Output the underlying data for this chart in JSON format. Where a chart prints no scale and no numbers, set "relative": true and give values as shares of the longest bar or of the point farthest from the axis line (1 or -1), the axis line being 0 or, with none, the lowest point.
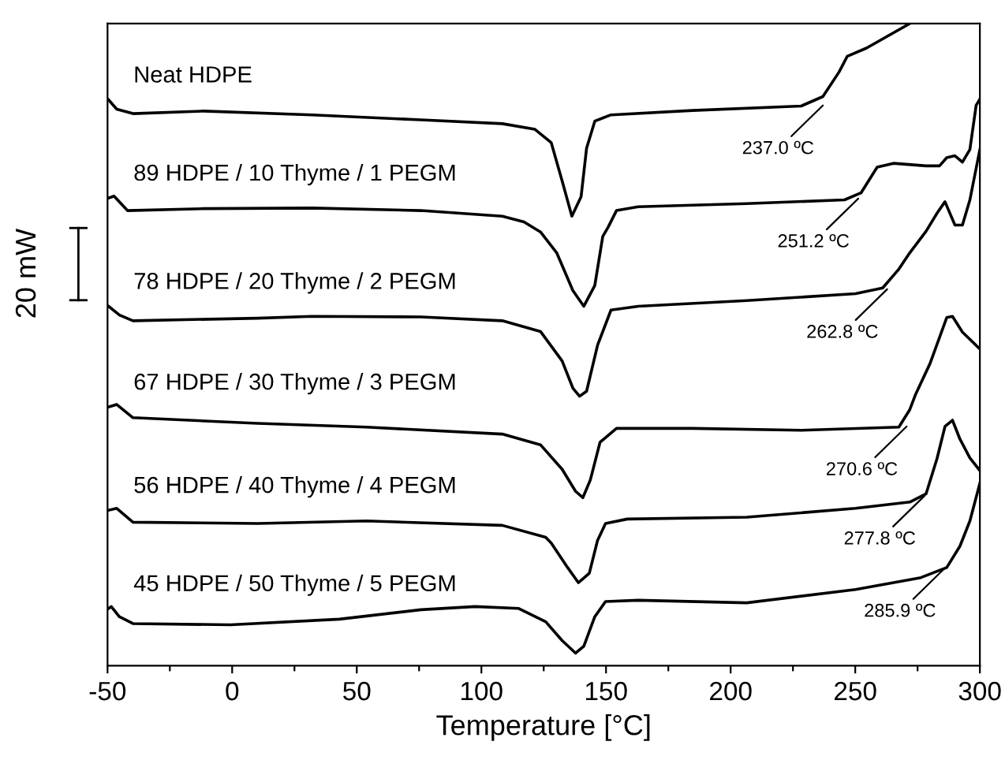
{
  "chart_data": {
    "type": "line",
    "relative": true,
    "xlabel": "Temperature [°C]",
    "xlim": [
      -50,
      300
    ],
    "xticks": [
      -50,
      {
        "value": -25,
        "label": null
      },
      0,
      {
        "value": 25,
        "label": null
      },
      50,
      {
        "value": 75,
        "label": null
      },
      100,
      {
        "value": 125,
        "label": null
      },
      150,
      {
        "value": 175,
        "label": null
      },
      200,
      {
        "value": 225,
        "label": null
      },
      250,
      {
        "value": 275,
        "label": null
      },
      300
    ],
    "tick_labels": "x",
    "grid": false,
    "legend": false,
    "marker": "none",
    "line_style": "solid",
    "series": [
      {
        "name": "Neat HDPE",
        "color": "#000000",
        "x": [
          -49.6,
          -46.3,
          -39.8,
          -11.5,
          32.1,
          75.7,
          108.4,
          121.5,
          128.0,
          132.4,
          136.3,
          140.0,
          142.2,
          145.5,
          152.0,
          184.7,
          228.3,
          237.0,
          243.5,
          246.8,
          254.5,
          271.9
        ],
        "values": [
          0.879,
          0.864,
          0.857,
          0.861,
          0.855,
          0.847,
          0.841,
          0.832,
          0.811,
          0.75,
          0.694,
          0.725,
          0.802,
          0.845,
          0.855,
          0.862,
          0.869,
          0.884,
          0.923,
          0.948,
          0.961,
          1.0
        ]
      },
      {
        "name": "89 HDPE / 10 Thyme / 1 PEGM",
        "color": "#000000",
        "x": [
          -49.6,
          -47.4,
          -42.0,
          -11.5,
          32.1,
          75.7,
          108.4,
          117.1,
          123.7,
          130.2,
          136.7,
          141.1,
          145.5,
          148.7,
          150.9,
          154.2,
          162.9,
          206.5,
          245.7,
          252.3,
          258.8,
          265.3,
          278.4,
          283.8,
          286.7,
          290,
          293,
          296,
          298.5,
          300
        ],
        "values": [
          0.723,
          0.726,
          0.703,
          0.706,
          0.707,
          0.703,
          0.694,
          0.685,
          0.669,
          0.636,
          0.576,
          0.551,
          0.584,
          0.662,
          0.677,
          0.703,
          0.709,
          0.714,
          0.72,
          0.731,
          0.772,
          0.778,
          0.774,
          0.774,
          0.787,
          0.79,
          0.78,
          0.8,
          0.87,
          0.88
        ]
      },
      {
        "name": "78 HDPE / 20 Thyme / 2 PEGM",
        "color": "#000000",
        "x": [
          -49.6,
          -45.2,
          -39.8,
          10.3,
          32.1,
          75.7,
          108.4,
          123.7,
          132.4,
          136.7,
          139.4,
          142.2,
          146.6,
          152.0,
          162.9,
          206.5,
          250.1,
          261.0,
          267.5,
          271.9,
          278.4,
          283,
          286,
          290,
          293,
          296,
          300
        ],
        "values": [
          0.551,
          0.537,
          0.528,
          0.532,
          0.535,
          0.534,
          0.528,
          0.511,
          0.464,
          0.421,
          0.408,
          0.416,
          0.489,
          0.545,
          0.551,
          0.56,
          0.571,
          0.58,
          0.61,
          0.636,
          0.67,
          0.7,
          0.717,
          0.68,
          0.68,
          0.72,
          0.8
        ]
      },
      {
        "name": "67 HDPE / 30 Thyme / 3 PEGM",
        "color": "#000000",
        "x": [
          -49.6,
          -46.3,
          -39.8,
          10.3,
          53.9,
          108.4,
          123.7,
          132.4,
          137.8,
          140.7,
          143.7,
          147.6,
          154.2,
          184.7,
          228.3,
          267.5,
          271.9,
          274.1,
          280,
          286.7,
          289,
          293,
          300
        ],
        "values": [
          0.391,
          0.395,
          0.374,
          0.365,
          0.359,
          0.348,
          0.331,
          0.292,
          0.257,
          0.247,
          0.275,
          0.335,
          0.357,
          0.357,
          0.354,
          0.359,
          0.387,
          0.41,
          0.46,
          0.533,
          0.535,
          0.51,
          0.483
        ]
      },
      {
        "name": "56 HDPE / 40 Thyme / 4 PEGM",
        "color": "#000000",
        "x": [
          -49.6,
          -46.3,
          -39.8,
          10.3,
          53.9,
          108.4,
          125.8,
          128.0,
          134.6,
          138.9,
          143.3,
          146.6,
          149.8,
          158.5,
          206.5,
          250.1,
          271.9,
          278.4,
          282.8,
          286,
          289,
          292,
          296,
          300
        ],
        "values": [
          0.227,
          0.23,
          0.208,
          0.206,
          0.21,
          0.203,
          0.184,
          0.175,
          0.136,
          0.112,
          0.127,
          0.179,
          0.206,
          0.213,
          0.216,
          0.23,
          0.24,
          0.253,
          0.309,
          0.36,
          0.37,
          0.34,
          0.31,
          0.29
        ]
      },
      {
        "name": "45 HDPE / 50 Thyme / 5 PEGM",
        "color": "#000000",
        "x": [
          -49.6,
          -48.5,
          -45.3,
          -39.8,
          -0.6,
          43.0,
          75.7,
          97.5,
          115.0,
          125.8,
          132.4,
          137.8,
          141.1,
          145.5,
          149.8,
          162.9,
          206.5,
          250.1,
          276.3,
          286.7,
          292,
          296,
          300
        ],
        "values": [
          0.071,
          0.074,
          0.058,
          0.047,
          0.045,
          0.054,
          0.069,
          0.074,
          0.071,
          0.05,
          0.02,
          0.0,
          0.011,
          0.058,
          0.082,
          0.084,
          0.08,
          0.101,
          0.12,
          0.136,
          0.17,
          0.21,
          0.27
        ]
      }
    ],
    "annotations": [
      {
        "text": "237.0 ºC",
        "x": 237.0,
        "y": 0.87
      },
      {
        "text": "251.2 ºC",
        "x": 251.2,
        "y": 0.722
      },
      {
        "text": "262.8 ºC",
        "x": 262.8,
        "y": 0.578
      },
      {
        "text": "270.6 ºC",
        "x": 270.6,
        "y": 0.36
      },
      {
        "text": "277.8 ºC",
        "x": 277.8,
        "y": 0.25
      },
      {
        "text": "285.9 ºC",
        "x": 285.9,
        "y": 0.135
      },
      "20 mW"
    ]
  }
}
